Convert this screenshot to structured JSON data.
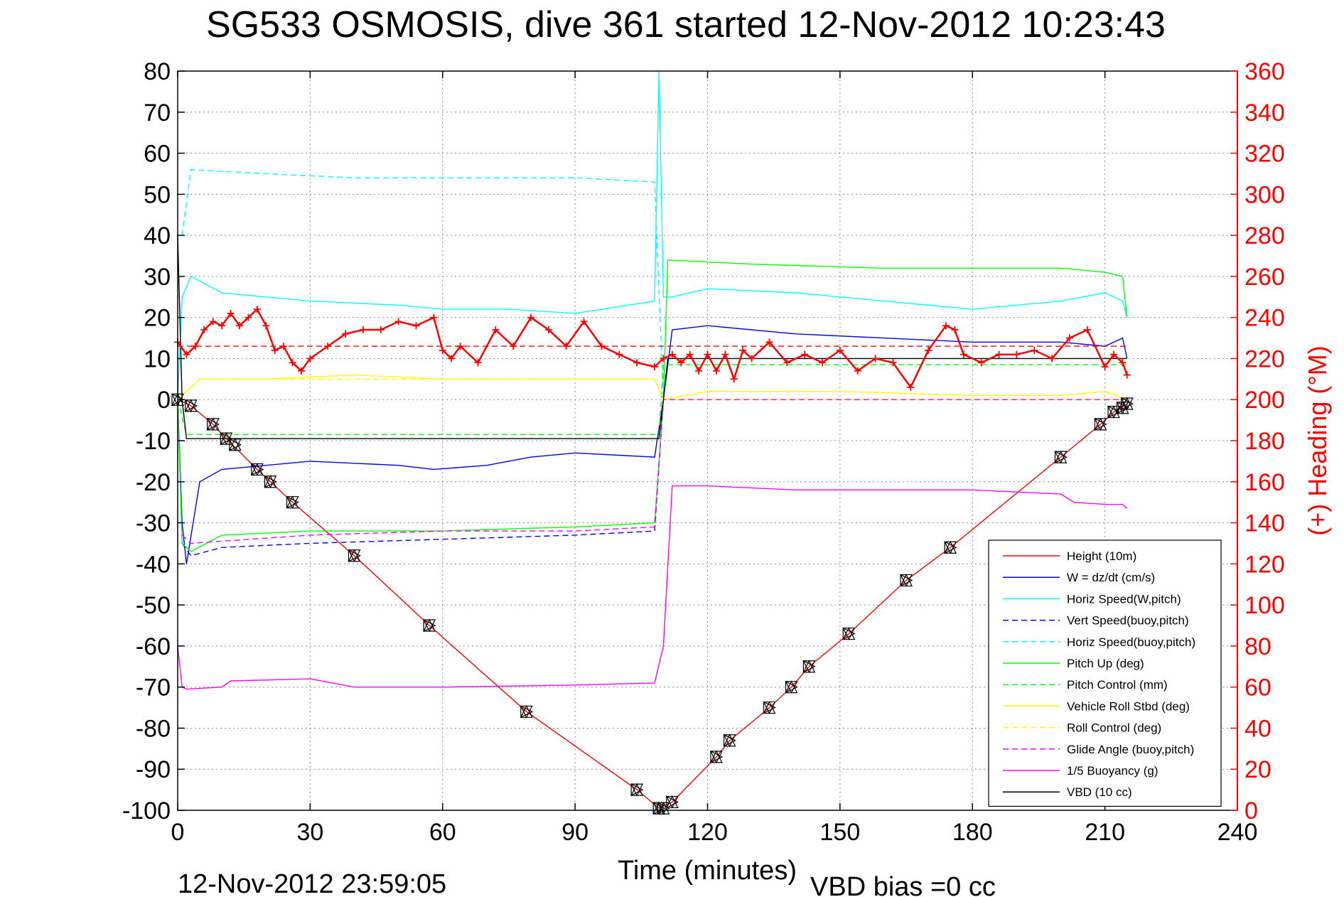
{
  "title": "SG533 OSMOSIS, dive 361 started 12-Nov-2012 10:23:43",
  "footer": {
    "left": "12-Nov-2012 23:59:05",
    "right": "VBD bias =0 cc"
  },
  "chart_data": {
    "type": "line",
    "xlabel": "Time (minutes)",
    "ylabel": "",
    "y2label": "(+) Heading (°M)",
    "xlim": [
      0,
      240
    ],
    "ylim": [
      -100,
      80
    ],
    "y2lim": [
      0,
      360
    ],
    "grid": true,
    "legend_position": "bottom-right",
    "x_ticks": [
      0,
      30,
      60,
      90,
      120,
      150,
      180,
      210,
      240
    ],
    "y_ticks": [
      80,
      70,
      60,
      50,
      40,
      30,
      20,
      10,
      0,
      -10,
      -20,
      -30,
      -40,
      -50,
      -60,
      -70,
      -80,
      -90,
      -100
    ],
    "y2_ticks": [
      360,
      340,
      320,
      300,
      280,
      260,
      240,
      220,
      200,
      180,
      160,
      140,
      120,
      100,
      80,
      60,
      40,
      20,
      0
    ],
    "colors": {
      "red": "#ff0000",
      "blue": "#0000ff",
      "cyan": "#00ffff",
      "green": "#00ff00",
      "yellow": "#ffff00",
      "magenta": "#ff00ff",
      "black": "#000000"
    },
    "series": [
      {
        "name": "Height (10m)",
        "color": "#ff0000",
        "dash": false,
        "x": [
          0,
          2,
          3,
          8,
          11,
          18,
          21,
          26,
          40,
          57,
          79,
          104,
          109,
          112,
          122,
          125,
          134,
          139,
          143,
          152,
          165,
          175,
          200,
          209,
          212,
          215
        ],
        "y": [
          0,
          -1,
          -1.5,
          -6,
          -9.5,
          -17,
          -20,
          -25,
          -38,
          -55,
          -76,
          -95,
          -99.5,
          -98,
          -87,
          -83,
          -75,
          -70,
          -65,
          -57,
          -44,
          -36,
          -14,
          -6,
          -3,
          -1
        ]
      },
      {
        "name": "W = dz/dt (cm/s)",
        "color": "#0000ff",
        "dash": false,
        "x": [
          0,
          1,
          2,
          5,
          10,
          20,
          30,
          50,
          58,
          70,
          80,
          90,
          108,
          110,
          112,
          120,
          140,
          160,
          180,
          200,
          210,
          214,
          215
        ],
        "y": [
          0,
          -30,
          -40,
          -20,
          -17,
          -16,
          -15,
          -16,
          -17,
          -16,
          -14,
          -13,
          -14,
          0,
          17,
          18,
          16,
          15,
          14,
          14,
          13,
          15,
          10
        ]
      },
      {
        "name": "Horiz Speed(W,pitch)",
        "color": "#00ffff",
        "dash": false,
        "x": [
          0,
          1,
          3,
          10,
          20,
          30,
          50,
          60,
          75,
          90,
          108,
          109,
          110,
          112,
          120,
          140,
          160,
          180,
          200,
          210,
          214,
          215
        ],
        "y": [
          0,
          25,
          30,
          26,
          25,
          24,
          23,
          22,
          22,
          21,
          24,
          80,
          25,
          25,
          27,
          26,
          24,
          22,
          24,
          26,
          24,
          20
        ]
      },
      {
        "name": "Vert Speed(buoy,pitch)",
        "color": "#0000ff",
        "dash": true,
        "x": [
          1,
          3,
          10,
          30,
          60,
          90,
          108,
          110
        ],
        "y": [
          -35,
          -38,
          -36,
          -35,
          -34,
          -33,
          -32,
          0
        ]
      },
      {
        "name": "Horiz Speed(buoy,pitch)",
        "color": "#00ffff",
        "dash": true,
        "x": [
          1,
          3,
          20,
          40,
          60,
          90,
          108,
          110
        ],
        "y": [
          40,
          56,
          55,
          54,
          54,
          54,
          53,
          0
        ]
      },
      {
        "name": "Pitch Up (deg)",
        "color": "#00ff00",
        "dash": false,
        "x": [
          0,
          1,
          3,
          10,
          30,
          60,
          90,
          108,
          110,
          111,
          130,
          160,
          200,
          210,
          214,
          215
        ],
        "y": [
          0,
          -35,
          -37,
          -33,
          -32,
          -32,
          -31,
          -30,
          0,
          34,
          33,
          32,
          32,
          31,
          30,
          20
        ]
      },
      {
        "name": "Pitch Control (mm)",
        "color": "#00ff00",
        "dash": true,
        "x": [
          0,
          2,
          109,
          110,
          215
        ],
        "y": [
          0,
          -8.5,
          -8.5,
          8.5,
          8.5
        ]
      },
      {
        "name": "Vehicle Roll Stbd (deg)",
        "color": "#ffff00",
        "dash": false,
        "x": [
          0,
          5,
          20,
          40,
          60,
          90,
          108,
          110,
          120,
          150,
          180,
          200,
          210,
          215
        ],
        "y": [
          0,
          5,
          5,
          6,
          5,
          5,
          5,
          0,
          2,
          2,
          1,
          1,
          2,
          0
        ]
      },
      {
        "name": "Roll Control (deg)",
        "color": "#ffff00",
        "dash": true,
        "x": [
          0,
          5,
          108,
          110,
          215
        ],
        "y": [
          0,
          5,
          5,
          0,
          0
        ]
      },
      {
        "name": "Glide Angle (buoy,pitch)",
        "color": "#ff00ff",
        "dash": true,
        "x": [
          1,
          3,
          30,
          60,
          90,
          108,
          110,
          215
        ],
        "y": [
          -33,
          -35,
          -33,
          -32,
          -32,
          -31,
          0,
          0
        ]
      },
      {
        "name": "1/5 Buoyancy (g)",
        "color": "#ff00ff",
        "dash": false,
        "x": [
          0,
          1,
          2,
          10,
          12,
          30,
          40,
          60,
          90,
          108,
          110,
          112,
          120,
          140,
          150,
          180,
          200,
          203,
          210,
          214,
          215
        ],
        "y": [
          -60,
          -70,
          -70.5,
          -70,
          -68.5,
          -68,
          -70,
          -70,
          -69.5,
          -69,
          -60,
          -21,
          -21,
          -22,
          -22,
          -22,
          -23,
          -25,
          -25.5,
          -25.5,
          -26.5
        ]
      },
      {
        "name": "VBD (10 cc)",
        "color": "#000000",
        "dash": false,
        "x": [
          0,
          1,
          2,
          109,
          110,
          111,
          215
        ],
        "y": [
          40,
          0,
          -9.5,
          -9.5,
          0,
          10,
          10
        ]
      }
    ],
    "markers": {
      "name": "Height samples",
      "x": [
        0,
        3,
        8,
        11,
        13,
        18,
        21,
        26,
        40,
        57,
        79,
        104,
        109,
        110,
        112,
        122,
        125,
        134,
        139,
        143,
        152,
        165,
        175,
        200,
        209,
        212,
        214,
        215
      ],
      "y": [
        0,
        -1.5,
        -6,
        -9.5,
        -11,
        -17,
        -20,
        -25,
        -38,
        -55,
        -76,
        -95,
        -99.5,
        -99.5,
        -98,
        -87,
        -83,
        -75,
        -70,
        -65,
        -57,
        -44,
        -36,
        -14,
        -6,
        -3,
        -2,
        -1
      ]
    },
    "heading": {
      "name": "(+) Heading",
      "color": "#ff0000",
      "mean": 226,
      "x": [
        0,
        2,
        4,
        6,
        8,
        10,
        12,
        14,
        16,
        18,
        20,
        22,
        24,
        26,
        28,
        30,
        34,
        38,
        42,
        46,
        50,
        54,
        58,
        60,
        62,
        64,
        68,
        72,
        76,
        80,
        84,
        88,
        92,
        96,
        100,
        104,
        108,
        110,
        112,
        114,
        116,
        118,
        120,
        122,
        124,
        126,
        128,
        130,
        134,
        138,
        142,
        146,
        150,
        154,
        158,
        162,
        166,
        170,
        174,
        176,
        178,
        182,
        186,
        190,
        194,
        198,
        202,
        206,
        210,
        212,
        214,
        215
      ],
      "y": [
        228,
        222,
        226,
        234,
        238,
        236,
        242,
        236,
        240,
        244,
        236,
        224,
        226,
        218,
        214,
        220,
        226,
        232,
        234,
        234,
        238,
        236,
        240,
        224,
        220,
        226,
        218,
        234,
        226,
        240,
        234,
        226,
        238,
        226,
        222,
        218,
        216,
        220,
        222,
        218,
        222,
        214,
        222,
        214,
        222,
        210,
        224,
        220,
        228,
        218,
        222,
        218,
        224,
        214,
        220,
        218,
        206,
        224,
        236,
        234,
        222,
        218,
        222,
        222,
        224,
        220,
        230,
        234,
        216,
        222,
        218,
        212
      ]
    }
  }
}
